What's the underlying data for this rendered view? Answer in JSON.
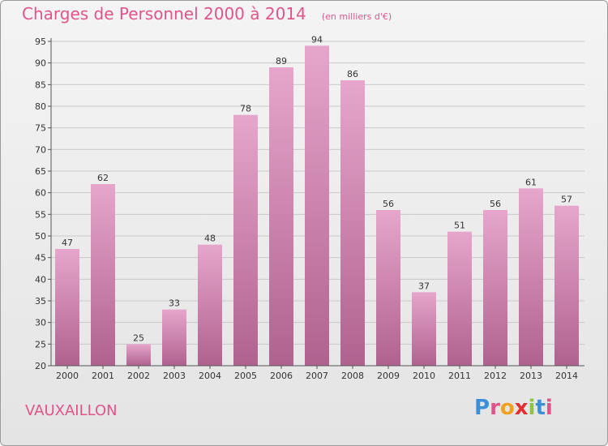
{
  "header": {
    "title": "Charges de Personnel 2000 à 2014",
    "subtitle": "(en milliers d'€)"
  },
  "footer": {
    "commune": "VAUXAILLON",
    "logo_letters": [
      "P",
      "r",
      "o",
      "x",
      "i",
      "t",
      "i"
    ],
    "logo_colors": [
      "#3b8fd9",
      "#e0548a",
      "#f2a020",
      "#e03030",
      "#8cc63f",
      "#3b8fd9",
      "#e0548a"
    ]
  },
  "colors": {
    "title": "#e0548a",
    "bar_top": "#e6a6cb",
    "bar_bottom": "#b0628f",
    "grid": "#c8c8c8",
    "axis": "#555555"
  },
  "chart_data": {
    "type": "bar",
    "title": "Charges de Personnel 2000 à 2014",
    "subtitle": "(en milliers d'€)",
    "categories": [
      "2000",
      "2001",
      "2002",
      "2003",
      "2004",
      "2005",
      "2006",
      "2007",
      "2008",
      "2009",
      "2010",
      "2011",
      "2012",
      "2013",
      "2014"
    ],
    "values": [
      47,
      62,
      25,
      33,
      48,
      78,
      89,
      94,
      86,
      56,
      37,
      51,
      56,
      61,
      57
    ],
    "ylim": [
      20,
      95
    ],
    "yticks": [
      20,
      25,
      30,
      35,
      40,
      45,
      50,
      55,
      60,
      65,
      70,
      75,
      80,
      85,
      90,
      95
    ],
    "grid": true,
    "data_labels": true
  }
}
